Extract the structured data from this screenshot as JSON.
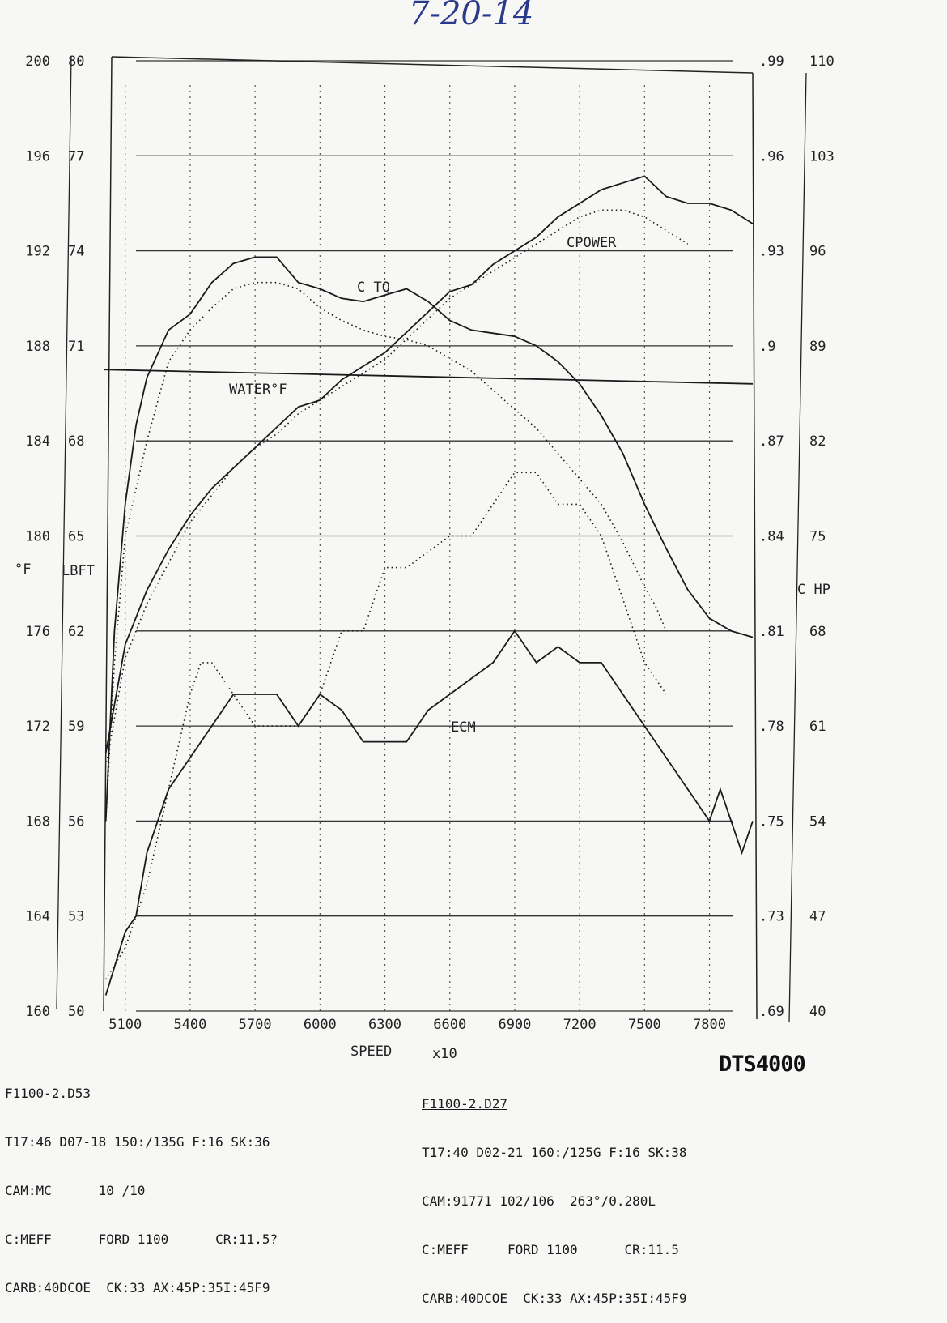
{
  "date_note": "7-20-14",
  "brand": "DTS4000",
  "chart_data": {
    "type": "line",
    "xlabel": "SPEED",
    "x_multiplier": "x10",
    "x_ticks": [
      5100,
      5400,
      5700,
      6000,
      6300,
      6600,
      6900,
      7200,
      7500,
      7800
    ],
    "xlim": [
      5000,
      8000
    ],
    "axes": {
      "water_f": {
        "label": "°F",
        "ticks": [
          "200",
          "196",
          "192",
          "188",
          "184",
          "180",
          "176",
          "172",
          "168",
          "164",
          "160"
        ],
        "range": [
          160,
          200
        ]
      },
      "torque": {
        "label": "LBFT",
        "ticks": [
          "80",
          "77",
          "74",
          "71",
          "68",
          "65",
          "62",
          "59",
          "56",
          "53",
          "50"
        ],
        "range": [
          50,
          80
        ]
      },
      "ecm": {
        "ticks": [
          ".99",
          ".96",
          ".93",
          ".9",
          ".87",
          ".84",
          ".81",
          ".78",
          ".75",
          ".73",
          ".69"
        ],
        "range": [
          0.69,
          0.99
        ]
      },
      "power": {
        "label": "C HP",
        "ticks": [
          "110",
          "103",
          "96",
          "89",
          "82",
          "75",
          "68",
          "61",
          "54",
          "47",
          "40"
        ],
        "range": [
          40,
          110
        ]
      }
    },
    "series": [
      {
        "name": "C TQ",
        "axis": "torque",
        "style": "solid",
        "x": [
          5010,
          5050,
          5100,
          5150,
          5200,
          5300,
          5400,
          5500,
          5600,
          5700,
          5800,
          5900,
          6000,
          6100,
          6200,
          6300,
          6400,
          6500,
          6600,
          6700,
          6800,
          6900,
          7000,
          7100,
          7200,
          7300,
          7400,
          7500,
          7600,
          7700,
          7800,
          7900,
          8000
        ],
        "y": [
          56.0,
          62.0,
          66.0,
          68.5,
          70.0,
          71.5,
          72.0,
          73.0,
          73.6,
          73.8,
          73.8,
          73.0,
          72.8,
          72.5,
          72.4,
          72.6,
          72.8,
          72.4,
          71.8,
          71.5,
          71.4,
          71.3,
          71.0,
          70.5,
          69.8,
          68.8,
          67.6,
          66.0,
          64.6,
          63.3,
          62.4,
          62.0,
          61.8
        ]
      },
      {
        "name": "C POWER",
        "axis": "power",
        "style": "solid",
        "x": [
          5010,
          5100,
          5200,
          5300,
          5400,
          5500,
          5600,
          5700,
          5800,
          5900,
          6000,
          6100,
          6200,
          6300,
          6400,
          6500,
          6600,
          6700,
          6800,
          6900,
          7000,
          7100,
          7200,
          7300,
          7400,
          7500,
          7600,
          7700,
          7800,
          7900,
          8000
        ],
        "y": [
          59.0,
          67.0,
          71.0,
          74.0,
          76.5,
          78.5,
          80.0,
          81.5,
          83.0,
          84.5,
          85.0,
          86.5,
          87.5,
          88.5,
          90.0,
          91.5,
          93.0,
          93.5,
          95.0,
          96.0,
          97.0,
          98.5,
          99.5,
          100.5,
          101.0,
          101.5,
          100.0,
          99.5,
          99.5,
          99.0,
          98.0
        ]
      },
      {
        "name": "ECM",
        "axis": "ecm",
        "style": "solid",
        "x": [
          5010,
          5100,
          5150,
          5200,
          5300,
          5400,
          5500,
          5600,
          5700,
          5800,
          5900,
          6000,
          6100,
          6200,
          6300,
          6400,
          6500,
          6600,
          6700,
          6800,
          6900,
          7000,
          7100,
          7200,
          7300,
          7400,
          7500,
          7600,
          7700,
          7800,
          7850,
          7900,
          7950,
          8000
        ],
        "y": [
          0.695,
          0.715,
          0.72,
          0.74,
          0.76,
          0.77,
          0.78,
          0.79,
          0.79,
          0.79,
          0.78,
          0.79,
          0.785,
          0.775,
          0.775,
          0.775,
          0.785,
          0.79,
          0.795,
          0.8,
          0.81,
          0.8,
          0.805,
          0.8,
          0.8,
          0.79,
          0.78,
          0.77,
          0.76,
          0.75,
          0.76,
          0.75,
          0.74,
          0.75
        ]
      },
      {
        "name": "WATER°F",
        "axis": "water_f",
        "style": "solid",
        "x": [
          5000,
          8000
        ],
        "y": [
          187,
          186.4
        ]
      },
      {
        "name": "ECM (run 2)",
        "axis": "ecm",
        "style": "dotted",
        "x": [
          5010,
          5100,
          5200,
          5300,
          5400,
          5450,
          5500,
          5600,
          5700,
          5800,
          5900,
          6000,
          6050,
          6100,
          6200,
          6300,
          6400,
          6500,
          6600,
          6700,
          6800,
          6900,
          7000,
          7100,
          7200,
          7300,
          7400,
          7500,
          7600
        ],
        "y": [
          0.7,
          0.71,
          0.73,
          0.76,
          0.79,
          0.8,
          0.8,
          0.79,
          0.78,
          0.78,
          0.78,
          0.79,
          0.8,
          0.81,
          0.81,
          0.83,
          0.83,
          0.835,
          0.84,
          0.84,
          0.85,
          0.86,
          0.86,
          0.85,
          0.85,
          0.84,
          0.82,
          0.8,
          0.79
        ]
      },
      {
        "name": "C TQ (run 2)",
        "axis": "torque",
        "style": "dotted",
        "x": [
          5010,
          5050,
          5100,
          5200,
          5300,
          5400,
          5500,
          5600,
          5700,
          5800,
          5900,
          6000,
          6100,
          6200,
          6300,
          6400,
          6500,
          6600,
          6700,
          6800,
          6900,
          7000,
          7100,
          7200,
          7300,
          7400,
          7500,
          7550,
          7600
        ],
        "y": [
          56,
          61,
          65,
          68,
          70.5,
          71.5,
          72.2,
          72.8,
          73,
          73,
          72.8,
          72.2,
          71.8,
          71.5,
          71.3,
          71.2,
          71.0,
          70.6,
          70.2,
          69.6,
          69.0,
          68.4,
          67.6,
          66.8,
          66.0,
          64.8,
          63.4,
          62.8,
          62.0
        ]
      },
      {
        "name": "C POWER (run 2)",
        "axis": "power",
        "style": "dotted",
        "x": [
          5010,
          5100,
          5200,
          5300,
          5400,
          5500,
          5600,
          5700,
          5800,
          5900,
          6000,
          6100,
          6200,
          6300,
          6400,
          6500,
          6600,
          6700,
          6800,
          6900,
          7000,
          7100,
          7200,
          7300,
          7400,
          7500,
          7600,
          7700
        ],
        "y": [
          58,
          66,
          70,
          73,
          76,
          78,
          80,
          81.5,
          82.5,
          84,
          85,
          86,
          87,
          88,
          89.5,
          91,
          92.5,
          93.5,
          94.5,
          95.5,
          96.5,
          97.5,
          98.5,
          99,
          99,
          98.5,
          97.5,
          96.5
        ]
      }
    ],
    "annotations": [
      "C TQ",
      "CPOWER",
      "WATER°F",
      "ECM"
    ]
  },
  "run1": {
    "file": "F1100-2.D53",
    "line1": "T17:46 D07-18 150:/135G F:16 SK:36",
    "line2": "CAM:MC      10 /10",
    "line3": "C:MEFF      FORD 1100      CR:11.5?",
    "line4": "CARB:40DCOE  CK:33 AX:45P:35I:45F9"
  },
  "run2": {
    "file": "F1100-2.D27",
    "line1": "T17:40 D02-21 160:/125G F:16 SK:38",
    "line2": "CAM:91771 102/106  263°/0.280L",
    "line3": "C:MEFF     FORD 1100      CR:11.5",
    "line4": "CARB:40DCOE  CK:33 AX:45P:35I:45F9"
  }
}
